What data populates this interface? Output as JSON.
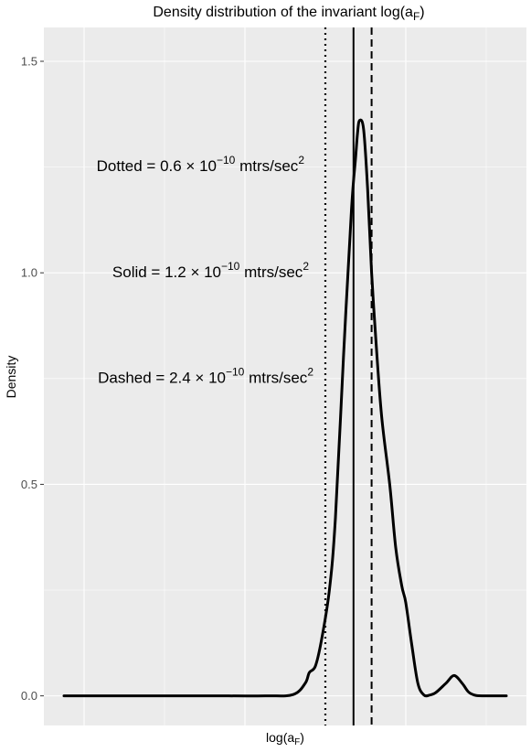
{
  "chart_data": {
    "type": "line",
    "title_main": "Density distribution of the invariant log(a",
    "title_sub": "F",
    "title_close": ")",
    "xlabel_main": "log(a",
    "xlabel_sub": "F",
    "xlabel_close": ")",
    "ylabel": "Density",
    "xlim": [
      -0.1,
      1.1
    ],
    "ylim": [
      -0.07,
      1.58
    ],
    "y_ticks": [
      0.0,
      0.5,
      1.0,
      1.5
    ],
    "y_tick_labels": [
      "0.0",
      "0.5",
      "1.0",
      "1.5"
    ],
    "x_tick_labels": [],
    "grid": true,
    "series": [
      {
        "x": [
          -0.05,
          0.1,
          0.3,
          0.45,
          0.52,
          0.55,
          0.56,
          0.575,
          0.59,
          0.61,
          0.625,
          0.645,
          0.665,
          0.675,
          0.68,
          0.685,
          0.695,
          0.705,
          0.715,
          0.725,
          0.74,
          0.76,
          0.775,
          0.79,
          0.8,
          0.815,
          0.83,
          0.845,
          0.86,
          0.875,
          0.9,
          0.92,
          0.94,
          0.955,
          0.97,
          0.99,
          1.05
        ],
        "y": [
          0.0,
          0.0,
          0.0,
          0.0,
          0.003,
          0.03,
          0.055,
          0.07,
          0.13,
          0.25,
          0.42,
          0.8,
          1.15,
          1.27,
          1.33,
          1.36,
          1.34,
          1.2,
          1.0,
          0.85,
          0.66,
          0.5,
          0.35,
          0.26,
          0.22,
          0.12,
          0.03,
          0.002,
          0.002,
          0.008,
          0.03,
          0.048,
          0.03,
          0.01,
          0.002,
          0.0,
          0.0
        ]
      }
    ],
    "vlines": [
      {
        "x": 0.6,
        "style": "dotted"
      },
      {
        "x": 0.67,
        "style": "solid"
      },
      {
        "x": 0.715,
        "style": "dashed"
      }
    ],
    "annotations": [
      {
        "label": "Dotted",
        "value": "0.6",
        "exp": "−10",
        "units": "mtrs/sec",
        "units_exp": "2",
        "y": 1.24
      },
      {
        "label": "Solid",
        "value": "1.2",
        "exp": "−10",
        "units": "mtrs/sec",
        "units_exp": "2",
        "y": 0.99
      },
      {
        "label": "Dashed",
        "value": "2.4",
        "exp": "−10",
        "units": "mtrs/sec",
        "units_exp": "2",
        "y": 0.74
      }
    ],
    "colors": {
      "panel": "#ebebeb",
      "line": "#000000",
      "grid": "#ffffff",
      "tick_text": "#4d4d4d"
    }
  }
}
